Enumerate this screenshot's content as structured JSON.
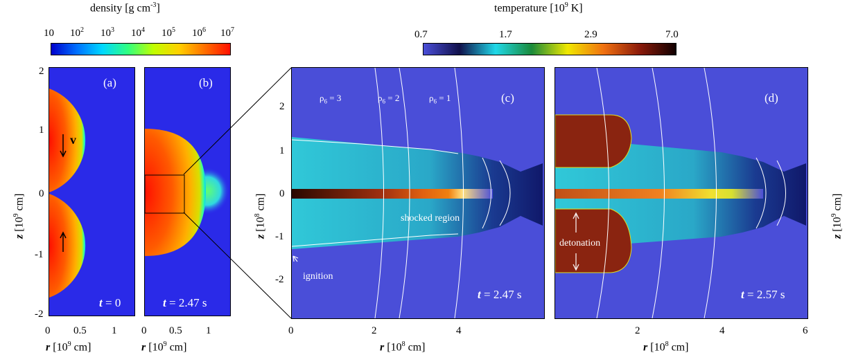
{
  "density_colorbar": {
    "title": "density [g cm",
    "title_sup": "-3",
    "title_end": "]",
    "ticks": [
      "10",
      "10",
      "10",
      "10",
      "10",
      "10",
      "10"
    ],
    "tick_sups": [
      "",
      "2",
      "3",
      "4",
      "5",
      "6",
      "7"
    ],
    "colors": [
      "#0000cc",
      "#0070ff",
      "#00d8ff",
      "#30ff80",
      "#c0ff00",
      "#ffd000",
      "#ff7000",
      "#ff1000"
    ]
  },
  "temperature_colorbar": {
    "title": "temperature [10",
    "title_sup": "9",
    "title_end": " K]",
    "ticks": [
      "0.7",
      "1.7",
      "2.9",
      "7.0"
    ],
    "colors": [
      "#4a4ed8",
      "#10104a",
      "#20d8e8",
      "#1a8a3a",
      "#f0e800",
      "#f07010",
      "#8a1a0a",
      "#100000"
    ]
  },
  "panel_a": {
    "letter": "(a)",
    "time_var": "t",
    "time_text": " = 0",
    "velocity": "v",
    "y_ticks": [
      "2",
      "1",
      "0",
      "-1",
      "-2"
    ],
    "x_ticks": [
      "0",
      "0.5",
      "1"
    ],
    "ylabel_var": "z",
    "ylabel_text": " [10",
    "ylabel_sup": "9",
    "ylabel_end": " cm]",
    "xlabel_var": "r",
    "xlabel_text": " [10",
    "xlabel_sup": "9",
    "xlabel_end": " cm]"
  },
  "panel_b": {
    "letter": "(b)",
    "time_var": "t",
    "time_text": " = 2.47 s",
    "x_ticks": [
      "0",
      "0.5",
      "1"
    ],
    "xlabel_var": "r",
    "xlabel_text": " [10",
    "xlabel_sup": "9",
    "xlabel_end": " cm]"
  },
  "panel_c": {
    "letter": "(c)",
    "time_var": "t",
    "time_text": " = 2.47 s",
    "contours": [
      "ρ",
      "ρ",
      "ρ"
    ],
    "contour_subs": [
      "6",
      "6",
      "6"
    ],
    "contour_vals": [
      " = 3",
      " = 2",
      " = 1"
    ],
    "annot_shocked": "shocked region",
    "annot_ignition": "ignition",
    "y_ticks": [
      "2",
      "1",
      "0",
      "-1",
      "-2"
    ],
    "x_ticks": [
      "0",
      "2",
      "4"
    ],
    "ylabel_var": "z",
    "ylabel_text": " [10",
    "ylabel_sup": "8",
    "ylabel_end": " cm]",
    "xlabel_var": "r",
    "xlabel_text": " [10",
    "xlabel_sup": "8",
    "xlabel_end": " cm]"
  },
  "panel_d": {
    "letter": "(d)",
    "time_var": "t",
    "time_text": " = 2.57 s",
    "annot_detonation": "detonation",
    "x_ticks": [
      "2",
      "4",
      "6"
    ],
    "xlabel_var": "r",
    "xlabel_text": " [10",
    "xlabel_sup": "8",
    "xlabel_end": " cm]",
    "ylabel_var": "z",
    "ylabel_text": " [10",
    "ylabel_sup": "9",
    "ylabel_end": " cm]"
  }
}
